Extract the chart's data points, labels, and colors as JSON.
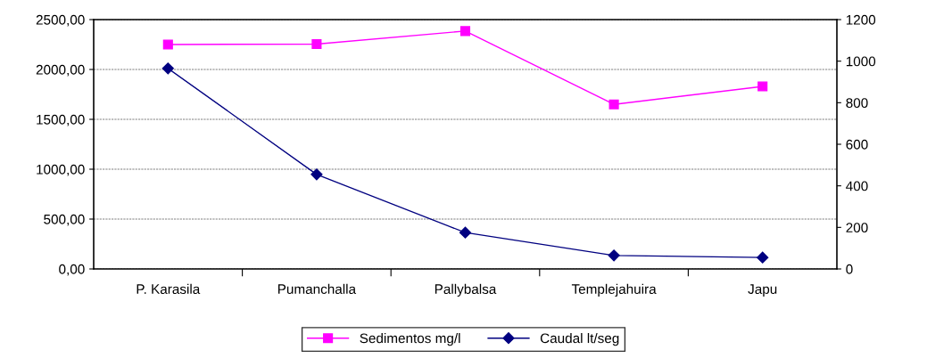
{
  "chart_data": {
    "type": "line",
    "categories": [
      "P. Karasila",
      "Pumanchalla",
      "Pallybalsa",
      "Templejahuira",
      "Japu"
    ],
    "series": [
      {
        "name": "Sedimentos mg/l",
        "color": "#ff00ff",
        "marker": "square",
        "values": [
          2250,
          2255,
          2385,
          1650,
          1830
        ]
      },
      {
        "name": "Caudal lt/seg",
        "color": "#000080",
        "marker": "diamond",
        "axis": "y2",
        "values": [
          965,
          455,
          175,
          65,
          55
        ]
      }
    ],
    "ylim": [
      0,
      2500
    ],
    "yticks": [
      {
        "value": 0,
        "label": "0,00"
      },
      {
        "value": 500,
        "label": "500,00"
      },
      {
        "value": 1000,
        "label": "1000,00"
      },
      {
        "value": 1500,
        "label": "1500,00"
      },
      {
        "value": 2000,
        "label": "2000,00"
      },
      {
        "value": 2500,
        "label": "2500,00"
      }
    ],
    "y2lim": [
      0,
      1200
    ],
    "y2ticks": [
      0,
      200,
      400,
      600,
      800,
      1000,
      1200
    ],
    "grid": "y",
    "legend": "bottom",
    "line_style": "solid"
  }
}
